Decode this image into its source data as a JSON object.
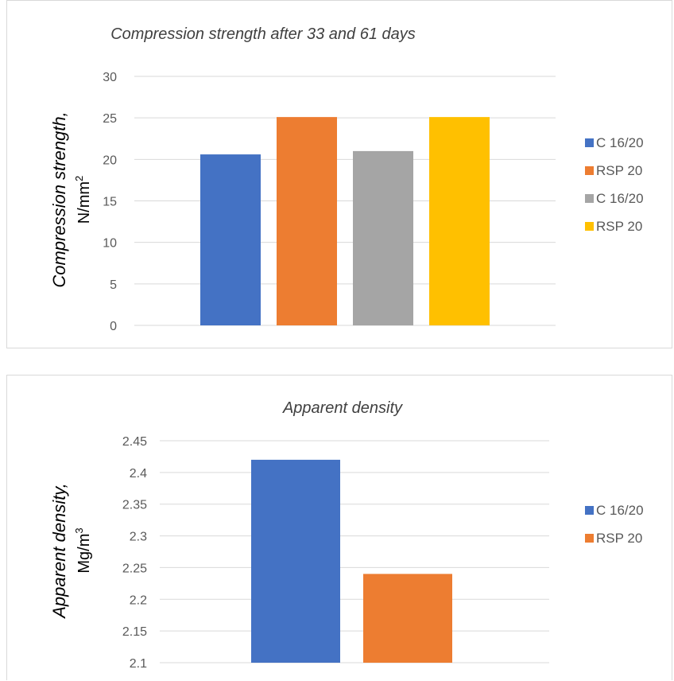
{
  "chart_data": [
    {
      "type": "bar",
      "title": "Compression strength after 33 and 61 days",
      "ylabel": "Compression strength,",
      "ylabel_unit": "N/mm",
      "ylabel_unit_sup": "2",
      "ylim": [
        0,
        30
      ],
      "yticks": [
        0,
        5,
        10,
        15,
        20,
        25,
        30
      ],
      "grid": true,
      "legend_position": "right",
      "series": [
        {
          "name": "C 16/20",
          "values": [
            20.6
          ],
          "color": "#4472c4"
        },
        {
          "name": "RSP 20",
          "values": [
            25.1
          ],
          "color": "#ed7d31"
        },
        {
          "name": "C 16/20",
          "values": [
            21.0
          ],
          "color": "#a5a5a5"
        },
        {
          "name": "RSP 20",
          "values": [
            25.1
          ],
          "color": "#ffc000"
        }
      ]
    },
    {
      "type": "bar",
      "title": "Apparent density",
      "ylabel": "Apparent density,",
      "ylabel_unit": "Mg/m",
      "ylabel_unit_sup": "3",
      "ylim": [
        2.1,
        2.45
      ],
      "yticks": [
        2.1,
        2.15,
        2.2,
        2.25,
        2.3,
        2.35,
        2.4,
        2.45
      ],
      "grid": true,
      "legend_position": "right",
      "series": [
        {
          "name": "C 16/20",
          "values": [
            2.42
          ],
          "color": "#4472c4"
        },
        {
          "name": "RSP 20",
          "values": [
            2.24
          ],
          "color": "#ed7d31"
        }
      ]
    }
  ]
}
